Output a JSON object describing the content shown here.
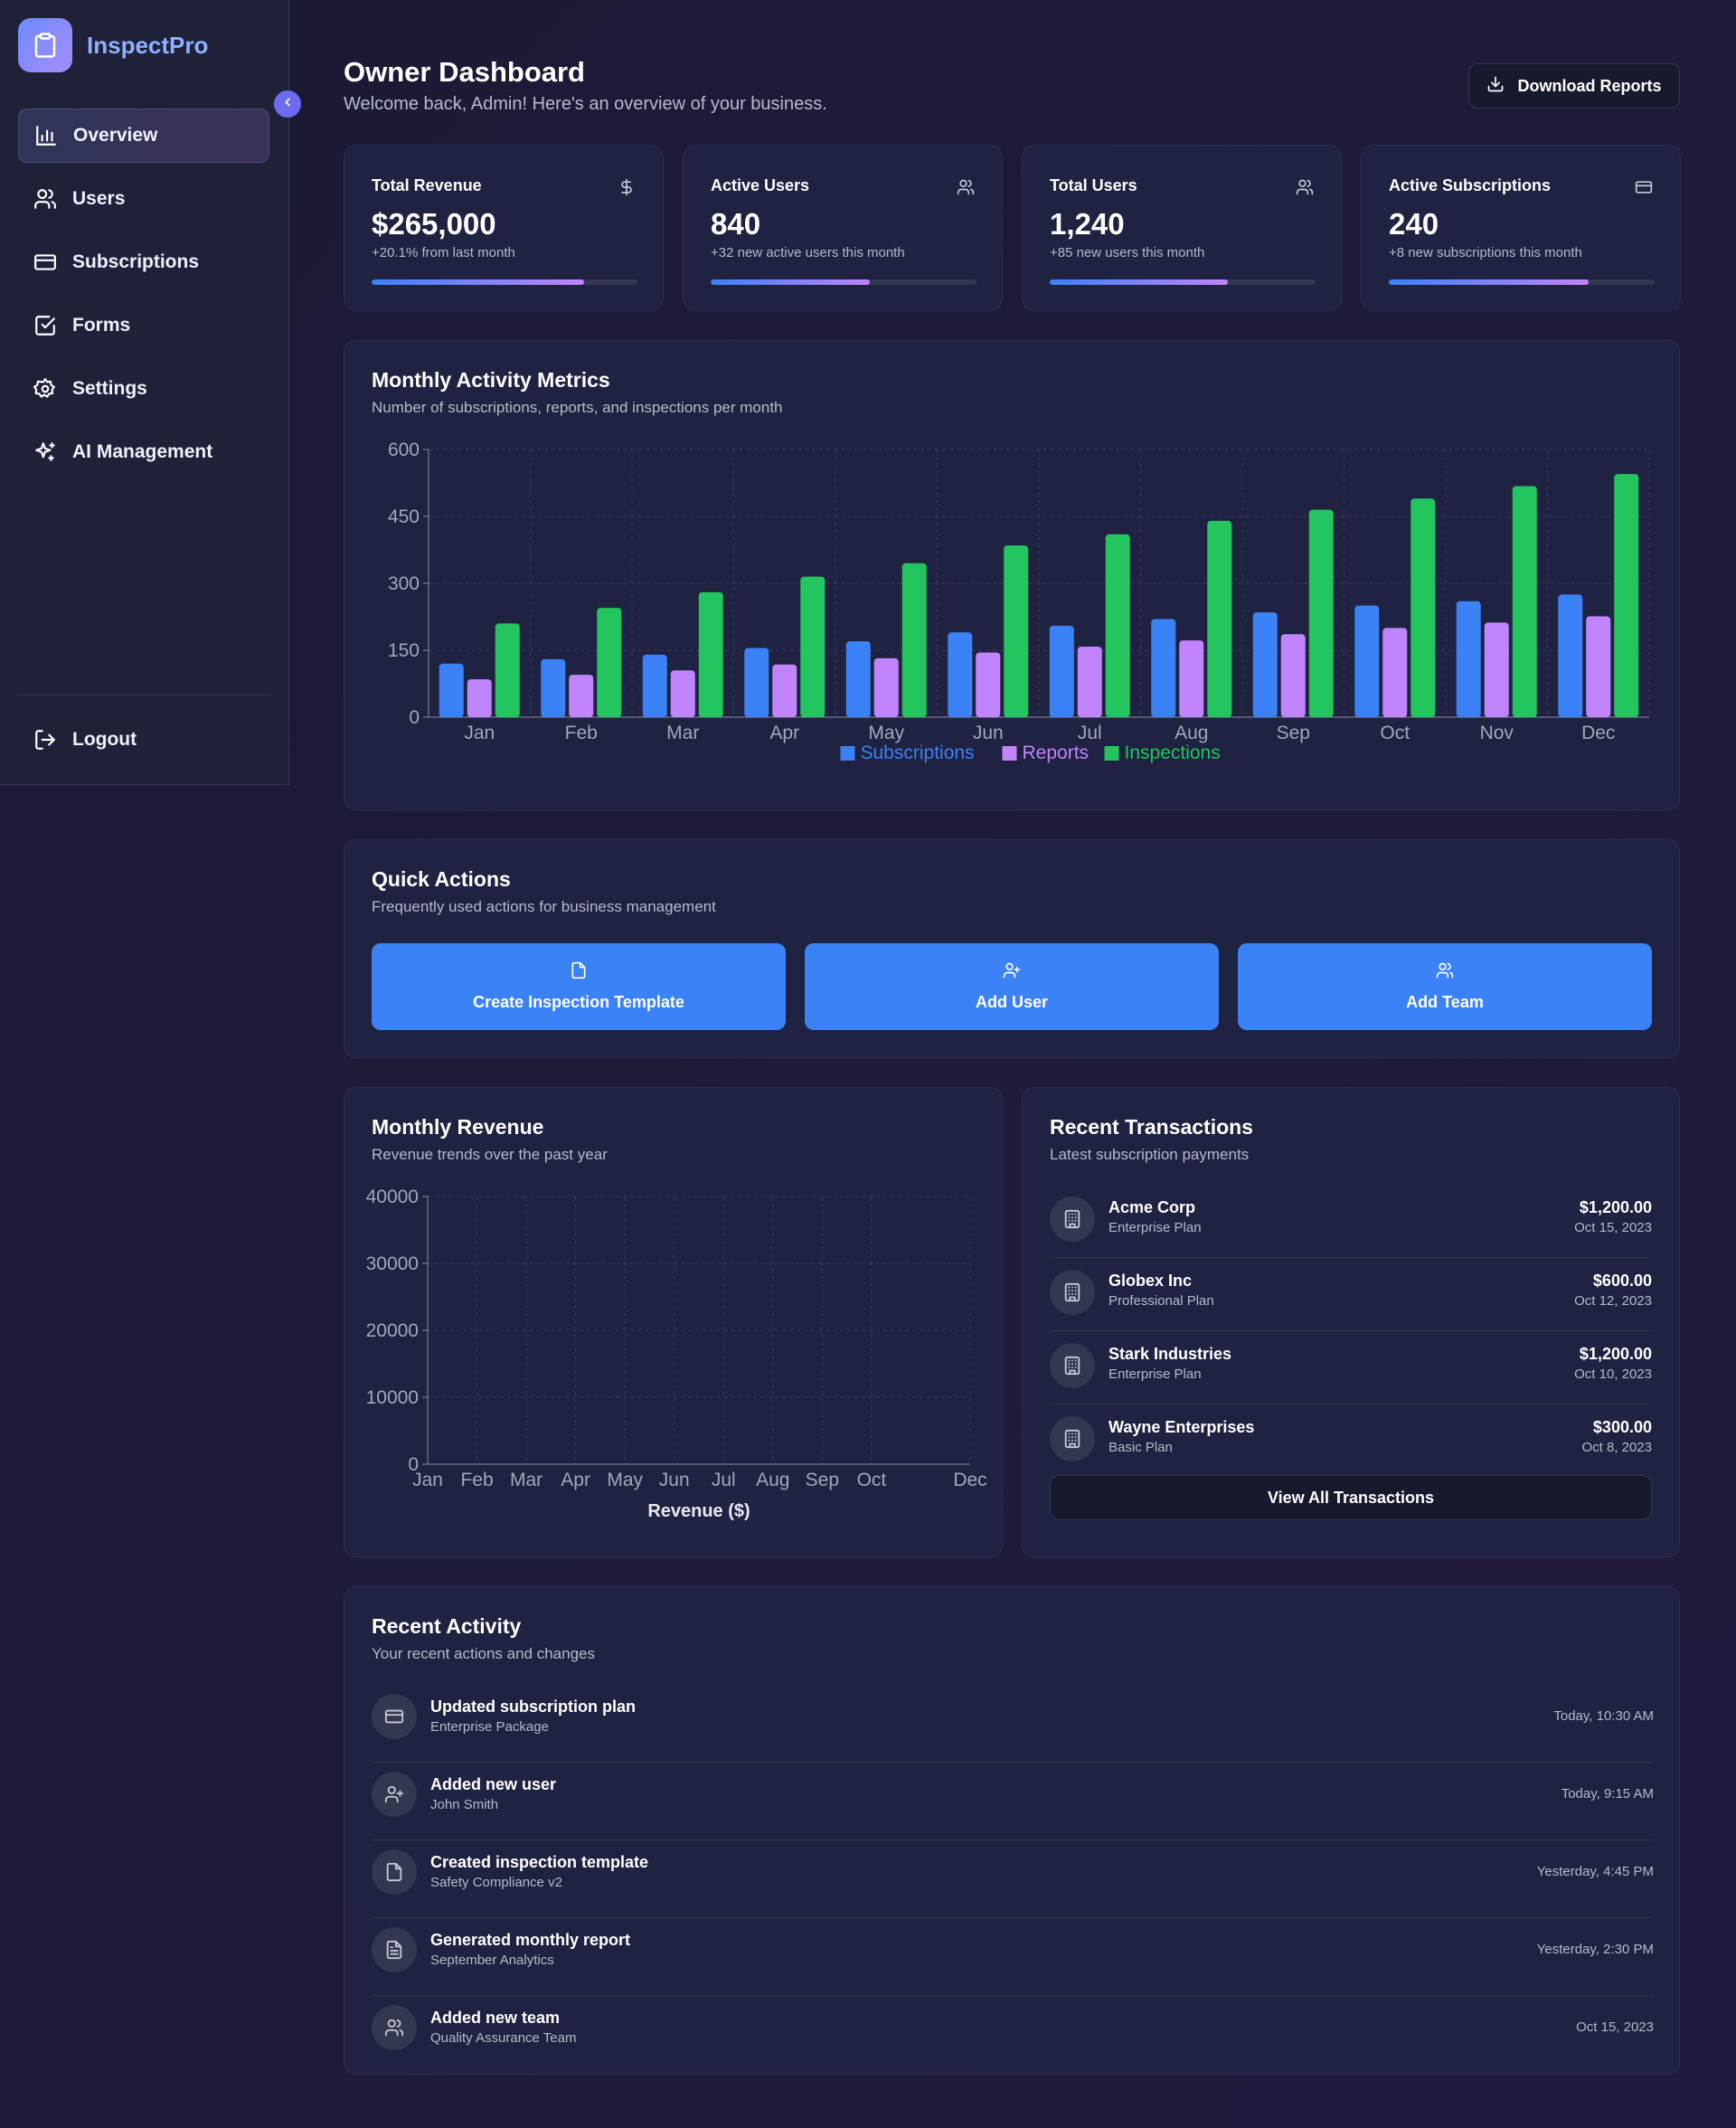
{
  "app": {
    "name": "InspectPro"
  },
  "sidebar": {
    "items": [
      {
        "label": "Overview",
        "icon": "bar-chart-icon",
        "active": true
      },
      {
        "label": "Users",
        "icon": "users-icon"
      },
      {
        "label": "Subscriptions",
        "icon": "credit-card-icon"
      },
      {
        "label": "Forms",
        "icon": "check-square-icon"
      },
      {
        "label": "Settings",
        "icon": "gear-icon"
      },
      {
        "label": "AI Management",
        "icon": "sparkles-icon"
      }
    ],
    "logout_label": "Logout"
  },
  "header": {
    "title": "Owner Dashboard",
    "subtitle": "Welcome back, Admin! Here's an overview of your business.",
    "download_label": "Download Reports"
  },
  "stats": [
    {
      "label": "Total Revenue",
      "value": "$265,000",
      "note": "+20.1% from last month",
      "progress": 0.8,
      "icon": "dollar-icon"
    },
    {
      "label": "Active Users",
      "value": "840",
      "note": "+32 new active users this month",
      "progress": 0.6,
      "icon": "users-icon"
    },
    {
      "label": "Total Users",
      "value": "1,240",
      "note": "+85 new users this month",
      "progress": 0.67,
      "icon": "users-icon"
    },
    {
      "label": "Active Subscriptions",
      "value": "240",
      "note": "+8 new subscriptions this month",
      "progress": 0.75,
      "icon": "credit-card-icon"
    }
  ],
  "activity_chart": {
    "title": "Monthly Activity Metrics",
    "subtitle": "Number of subscriptions, reports, and inspections per month"
  },
  "chart_data": [
    {
      "type": "bar",
      "categories": [
        "Jan",
        "Feb",
        "Mar",
        "Apr",
        "May",
        "Jun",
        "Jul",
        "Aug",
        "Sep",
        "Oct",
        "Nov",
        "Dec"
      ],
      "y_ticks": [
        0,
        150,
        300,
        450,
        600
      ],
      "ylim": [
        0,
        600
      ],
      "grid": true,
      "legend_position": "bottom",
      "series": [
        {
          "name": "Subscriptions",
          "color": "#3b82f6",
          "values": [
            120,
            130,
            140,
            155,
            170,
            190,
            205,
            220,
            235,
            250,
            260,
            275
          ]
        },
        {
          "name": "Reports",
          "color": "#c084fc",
          "values": [
            85,
            95,
            105,
            118,
            132,
            145,
            158,
            172,
            186,
            200,
            212,
            226
          ]
        },
        {
          "name": "Inspections",
          "color": "#22c55e",
          "values": [
            210,
            245,
            280,
            315,
            345,
            385,
            410,
            440,
            465,
            490,
            518,
            545
          ]
        }
      ]
    },
    {
      "type": "line",
      "categories": [
        "Jan",
        "Feb",
        "Mar",
        "Apr",
        "May",
        "Jun",
        "Jul",
        "Aug",
        "Sep",
        "Oct",
        "Dec"
      ],
      "y_ticks": [
        0,
        10000,
        20000,
        30000,
        40000
      ],
      "ylim": [
        0,
        40000
      ],
      "grid": true,
      "xlabel": "Revenue ($)",
      "series": []
    }
  ],
  "quick_actions": {
    "title": "Quick Actions",
    "subtitle": "Frequently used actions for business management",
    "buttons": [
      {
        "label": "Create Inspection Template",
        "icon": "file-icon"
      },
      {
        "label": "Add User",
        "icon": "user-plus-icon"
      },
      {
        "label": "Add Team",
        "icon": "users-icon"
      }
    ]
  },
  "revenue_chart": {
    "title": "Monthly Revenue",
    "subtitle": "Revenue trends over the past year"
  },
  "transactions": {
    "title": "Recent Transactions",
    "subtitle": "Latest subscription payments",
    "items": [
      {
        "name": "Acme Corp",
        "plan": "Enterprise Plan",
        "amount": "$1,200.00",
        "date": "Oct 15, 2023"
      },
      {
        "name": "Globex Inc",
        "plan": "Professional Plan",
        "amount": "$600.00",
        "date": "Oct 12, 2023"
      },
      {
        "name": "Stark Industries",
        "plan": "Enterprise Plan",
        "amount": "$1,200.00",
        "date": "Oct 10, 2023"
      },
      {
        "name": "Wayne Enterprises",
        "plan": "Basic Plan",
        "amount": "$300.00",
        "date": "Oct 8, 2023"
      }
    ],
    "view_all_label": "View All Transactions"
  },
  "activity": {
    "title": "Recent Activity",
    "subtitle": "Your recent actions and changes",
    "items": [
      {
        "title": "Updated subscription plan",
        "sub": "Enterprise Package",
        "time": "Today, 10:30 AM",
        "icon": "credit-card-icon"
      },
      {
        "title": "Added new user",
        "sub": "John Smith",
        "time": "Today, 9:15 AM",
        "icon": "user-plus-icon"
      },
      {
        "title": "Created inspection template",
        "sub": "Safety Compliance v2",
        "time": "Yesterday, 4:45 PM",
        "icon": "file-icon"
      },
      {
        "title": "Generated monthly report",
        "sub": "September Analytics",
        "time": "Yesterday, 2:30 PM",
        "icon": "file-text-icon"
      },
      {
        "title": "Added new team",
        "sub": "Quality Assurance Team",
        "time": "Oct 15, 2023",
        "icon": "users-icon"
      }
    ]
  },
  "colors": {
    "accent": "#3b82f6",
    "purple": "#c084fc",
    "green": "#22c55e",
    "card_bg": "#1f2240"
  }
}
